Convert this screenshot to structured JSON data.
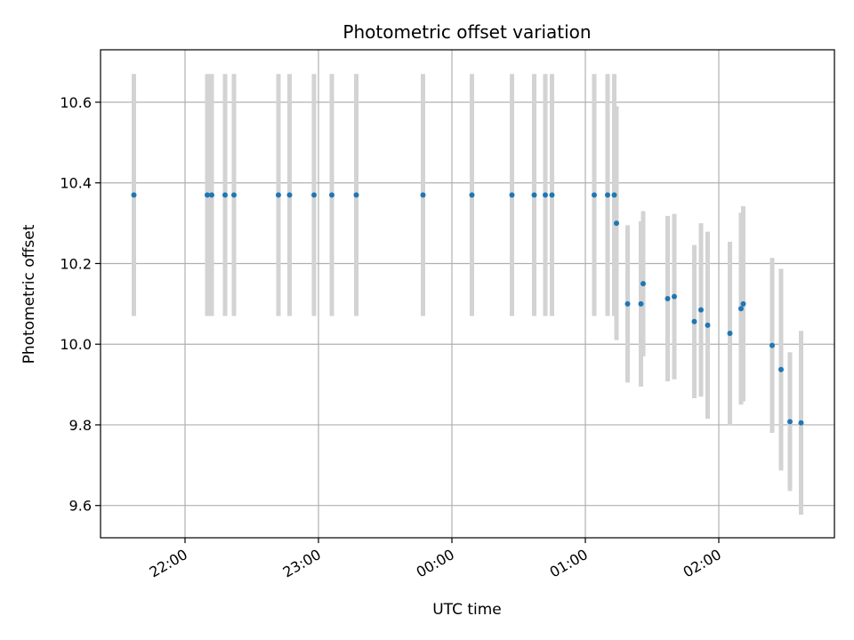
{
  "chart_data": {
    "type": "scatter",
    "title": "Photometric offset variation",
    "xlabel": "UTC time",
    "ylabel": "Photometric offset",
    "x_unit": "UTC time (HH:MM)",
    "xlim": [
      "21:22",
      "02:52"
    ],
    "ylim": [
      9.52,
      10.73
    ],
    "x_ticks": [
      "22:00",
      "23:00",
      "00:00",
      "01:00",
      "02:00"
    ],
    "y_ticks": [
      9.6,
      9.8,
      10.0,
      10.2,
      10.4,
      10.6
    ],
    "y_tick_labels": [
      "9.6",
      "9.8",
      "10.0",
      "10.2",
      "10.4",
      "10.6"
    ],
    "grid": true,
    "colors": {
      "marker": "#1f77b4",
      "errorbar": "#d3d3d3",
      "grid": "#b0b0b0"
    },
    "points": [
      {
        "time": "21:37",
        "y": 10.37,
        "err": 0.3
      },
      {
        "time": "22:10",
        "y": 10.37,
        "err": 0.3
      },
      {
        "time": "22:12",
        "y": 10.37,
        "err": 0.3
      },
      {
        "time": "22:18",
        "y": 10.37,
        "err": 0.3
      },
      {
        "time": "22:22",
        "y": 10.37,
        "err": 0.3
      },
      {
        "time": "22:42",
        "y": 10.37,
        "err": 0.3
      },
      {
        "time": "22:47",
        "y": 10.37,
        "err": 0.3
      },
      {
        "time": "22:58",
        "y": 10.37,
        "err": 0.3
      },
      {
        "time": "23:06",
        "y": 10.37,
        "err": 0.3
      },
      {
        "time": "23:17",
        "y": 10.37,
        "err": 0.3
      },
      {
        "time": "23:47",
        "y": 10.37,
        "err": 0.3
      },
      {
        "time": "00:09",
        "y": 10.37,
        "err": 0.3
      },
      {
        "time": "00:27",
        "y": 10.37,
        "err": 0.3
      },
      {
        "time": "00:37",
        "y": 10.37,
        "err": 0.3
      },
      {
        "time": "00:42",
        "y": 10.37,
        "err": 0.3
      },
      {
        "time": "00:45",
        "y": 10.37,
        "err": 0.3
      },
      {
        "time": "01:04",
        "y": 10.37,
        "err": 0.3
      },
      {
        "time": "01:10",
        "y": 10.37,
        "err": 0.3
      },
      {
        "time": "01:13",
        "y": 10.37,
        "err": 0.3
      },
      {
        "time": "01:14",
        "y": 10.3,
        "err": 0.29
      },
      {
        "time": "01:19",
        "y": 10.1,
        "err": 0.195
      },
      {
        "time": "01:25",
        "y": 10.1,
        "err": 0.205
      },
      {
        "time": "01:26",
        "y": 10.15,
        "err": 0.18
      },
      {
        "time": "01:37",
        "y": 10.113,
        "err": 0.205
      },
      {
        "time": "01:40",
        "y": 10.118,
        "err": 0.205
      },
      {
        "time": "01:49",
        "y": 10.056,
        "err": 0.19
      },
      {
        "time": "01:52",
        "y": 10.085,
        "err": 0.215
      },
      {
        "time": "01:55",
        "y": 10.047,
        "err": 0.232
      },
      {
        "time": "02:05",
        "y": 10.027,
        "err": 0.227
      },
      {
        "time": "02:10",
        "y": 10.088,
        "err": 0.238
      },
      {
        "time": "02:11",
        "y": 10.1,
        "err": 0.242
      },
      {
        "time": "02:24",
        "y": 9.997,
        "err": 0.217
      },
      {
        "time": "02:28",
        "y": 9.937,
        "err": 0.25
      },
      {
        "time": "02:32",
        "y": 9.808,
        "err": 0.172
      },
      {
        "time": "02:37",
        "y": 9.805,
        "err": 0.228
      }
    ]
  }
}
